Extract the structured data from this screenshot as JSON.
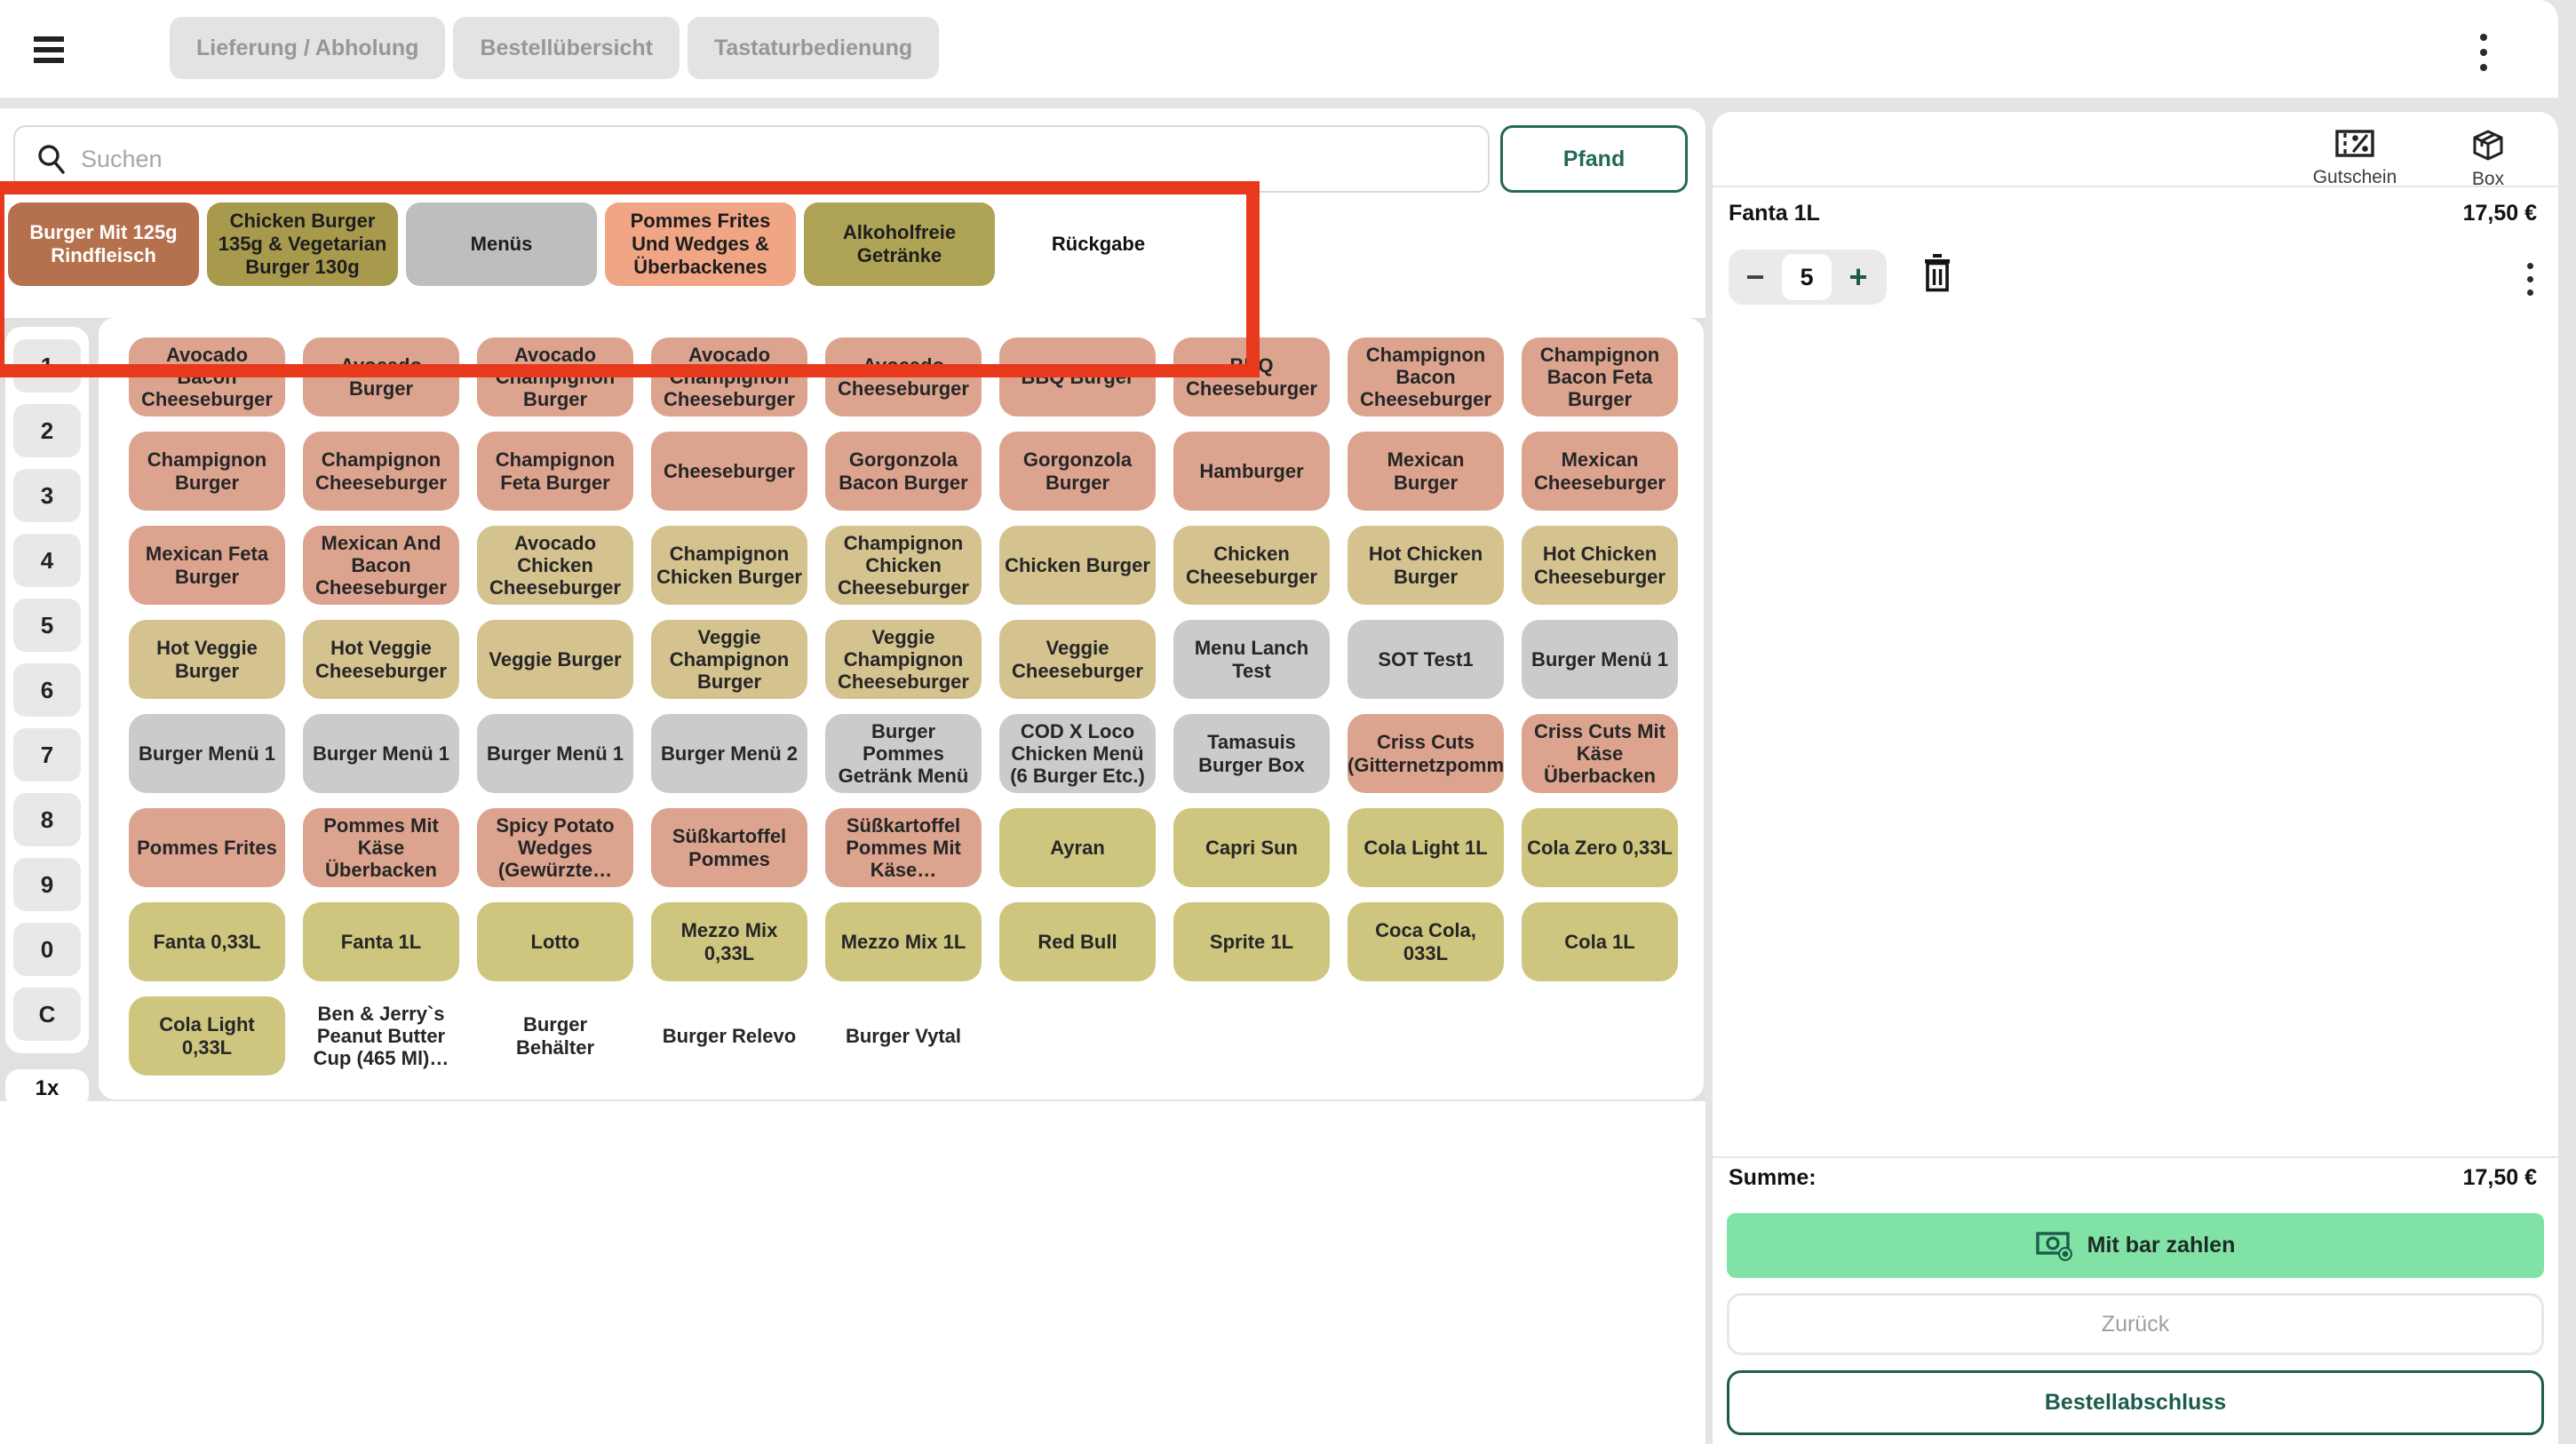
{
  "topbar": {
    "tabs": [
      "Lieferung / Abholung",
      "Bestellübersicht",
      "Tastaturbedienung"
    ]
  },
  "search": {
    "placeholder": "Suchen",
    "pfand_label": "Pfand"
  },
  "categories": [
    {
      "label": "Burger Mit 125g Rindfleisch",
      "bg": "#b5714e",
      "fg": "#ffffff"
    },
    {
      "label": "Chicken Burger 135g & Vegetarian Burger 130g",
      "bg": "#a89a4d",
      "fg": "#1d1d1d"
    },
    {
      "label": "Menüs",
      "bg": "#bebebe",
      "fg": "#1d1d1d"
    },
    {
      "label": "Pommes Frites Und Wedges & Überbackenes",
      "bg": "#f0a585",
      "fg": "#1d1d1d"
    },
    {
      "label": "Alkoholfreie Getränke",
      "bg": "#afa356",
      "fg": "#1d1d1d"
    },
    {
      "label": "Rückgabe",
      "bg": "transparent",
      "fg": "#111111"
    }
  ],
  "numpad": {
    "keys": [
      "1",
      "2",
      "3",
      "4",
      "5",
      "6",
      "7",
      "8",
      "9",
      "0",
      "C"
    ],
    "multiplier": "1x"
  },
  "product_colors": {
    "salmon": "#dca48f",
    "tan": "#d4c28f",
    "olive": "#cec67f",
    "gray": "#cbcbcb",
    "none": "transparent"
  },
  "products": [
    {
      "label": "Avocado Bacon Cheeseburger",
      "color": "salmon"
    },
    {
      "label": "Avocado Burger",
      "color": "salmon"
    },
    {
      "label": "Avocado Champignon Burger",
      "color": "salmon"
    },
    {
      "label": "Avocado Champignon Cheeseburger",
      "color": "salmon"
    },
    {
      "label": "Avocado Cheeseburger",
      "color": "salmon"
    },
    {
      "label": "BBQ Burger",
      "color": "salmon"
    },
    {
      "label": "BBQ Cheeseburger",
      "color": "salmon"
    },
    {
      "label": "Champignon Bacon Cheeseburger",
      "color": "salmon"
    },
    {
      "label": "Champignon Bacon Feta Burger",
      "color": "salmon"
    },
    {
      "label": "Champignon Burger",
      "color": "salmon"
    },
    {
      "label": "Champignon Cheeseburger",
      "color": "salmon"
    },
    {
      "label": "Champignon Feta Burger",
      "color": "salmon"
    },
    {
      "label": "Cheeseburger",
      "color": "salmon"
    },
    {
      "label": "Gorgonzola Bacon Burger",
      "color": "salmon"
    },
    {
      "label": "Gorgonzola Burger",
      "color": "salmon"
    },
    {
      "label": "Hamburger",
      "color": "salmon"
    },
    {
      "label": "Mexican Burger",
      "color": "salmon"
    },
    {
      "label": "Mexican Cheeseburger",
      "color": "salmon"
    },
    {
      "label": "Mexican Feta Burger",
      "color": "salmon"
    },
    {
      "label": "Mexican And Bacon Cheeseburger",
      "color": "salmon"
    },
    {
      "label": "Avocado Chicken Cheeseburger",
      "color": "tan"
    },
    {
      "label": "Champignon Chicken Burger",
      "color": "tan"
    },
    {
      "label": "Champignon Chicken Cheeseburger",
      "color": "tan"
    },
    {
      "label": "Chicken Burger",
      "color": "tan"
    },
    {
      "label": "Chicken Cheeseburger",
      "color": "tan"
    },
    {
      "label": "Hot Chicken Burger",
      "color": "tan"
    },
    {
      "label": "Hot Chicken Cheeseburger",
      "color": "tan"
    },
    {
      "label": "Hot Veggie Burger",
      "color": "tan"
    },
    {
      "label": "Hot Veggie Cheeseburger",
      "color": "tan"
    },
    {
      "label": "Veggie Burger",
      "color": "tan"
    },
    {
      "label": "Veggie Champignon Burger",
      "color": "tan"
    },
    {
      "label": "Veggie Champignon Cheeseburger",
      "color": "tan"
    },
    {
      "label": "Veggie Cheeseburger",
      "color": "tan"
    },
    {
      "label": "Menu Lanch Test",
      "color": "gray"
    },
    {
      "label": "SOT Test1",
      "color": "gray"
    },
    {
      "label": "Burger Menü 1",
      "color": "gray"
    },
    {
      "label": "Burger Menü 1",
      "color": "gray"
    },
    {
      "label": "Burger Menü 1",
      "color": "gray"
    },
    {
      "label": "Burger Menü 1",
      "color": "gray"
    },
    {
      "label": "Burger Menü 2",
      "color": "gray"
    },
    {
      "label": "Burger Pommes Getränk Menü",
      "color": "gray"
    },
    {
      "label": "COD X Loco Chicken Menü (6 Burger Etc.)",
      "color": "gray"
    },
    {
      "label": "Tamasuis Burger Box",
      "color": "gray"
    },
    {
      "label": "Criss Cuts (Gitternetzpomm",
      "color": "salmon"
    },
    {
      "label": "Criss Cuts Mit Käse Überbacken",
      "color": "salmon"
    },
    {
      "label": "Pommes Frites",
      "color": "salmon"
    },
    {
      "label": "Pommes Mit Käse Überbacken",
      "color": "salmon"
    },
    {
      "label": "Spicy Potato Wedges (Gewürzte…",
      "color": "salmon"
    },
    {
      "label": "Süßkartoffel Pommes",
      "color": "salmon"
    },
    {
      "label": "Süßkartoffel Pommes Mit Käse…",
      "color": "salmon"
    },
    {
      "label": "Ayran",
      "color": "olive"
    },
    {
      "label": "Capri Sun",
      "color": "olive"
    },
    {
      "label": "Cola Light 1L",
      "color": "olive"
    },
    {
      "label": "Cola Zero 0,33L",
      "color": "olive"
    },
    {
      "label": "Fanta 0,33L",
      "color": "olive"
    },
    {
      "label": "Fanta 1L",
      "color": "olive"
    },
    {
      "label": "Lotto",
      "color": "olive"
    },
    {
      "label": "Mezzo Mix 0,33L",
      "color": "olive"
    },
    {
      "label": "Mezzo Mix 1L",
      "color": "olive"
    },
    {
      "label": "Red Bull",
      "color": "olive"
    },
    {
      "label": "Sprite 1L",
      "color": "olive"
    },
    {
      "label": "Coca Cola, 033L",
      "color": "olive"
    },
    {
      "label": "Cola 1L",
      "color": "olive"
    },
    {
      "label": "Cola Light 0,33L",
      "color": "olive"
    },
    {
      "label": "Ben & Jerry`s Peanut Butter Cup (465 Ml)…",
      "color": "none"
    },
    {
      "label": "Burger Behälter",
      "color": "none"
    },
    {
      "label": "Burger Relevo",
      "color": "none"
    },
    {
      "label": "Burger Vytal",
      "color": "none"
    }
  ],
  "right_panel": {
    "gutschein_label": "Gutschein",
    "box_label": "Box",
    "cart_item": {
      "name": "Fanta 1L",
      "price": "17,50 €",
      "quantity": "5"
    },
    "summary": {
      "label": "Summe:",
      "amount": "17,50 €"
    },
    "buttons": {
      "pay_cash": "Mit bar zahlen",
      "back": "Zurück",
      "finish": "Bestellabschluss"
    }
  },
  "annotation": {
    "color": "#e8391d"
  }
}
